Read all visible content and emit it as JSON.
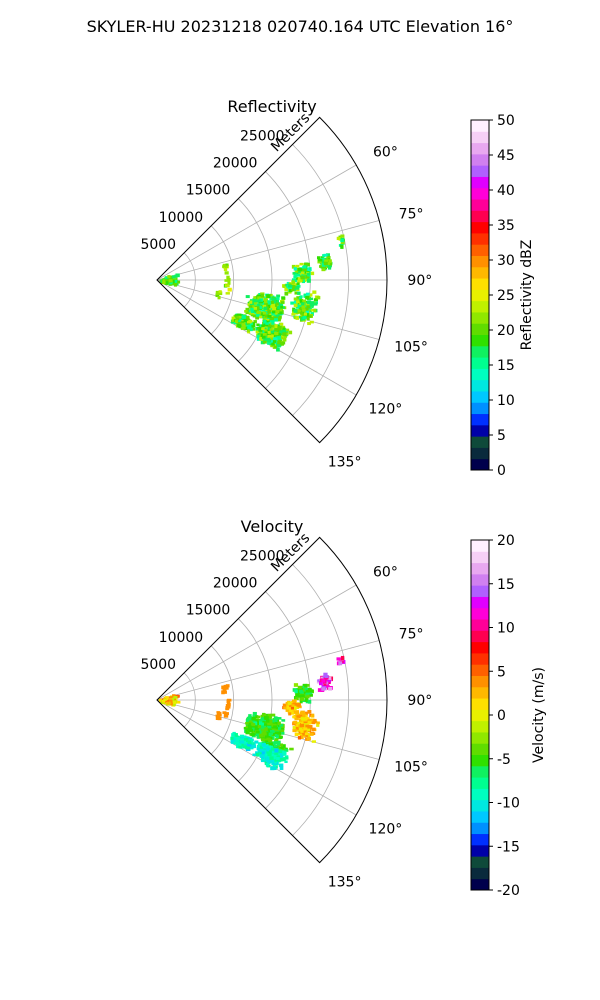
{
  "figure": {
    "suptitle": "SKYLER-HU  20231218  020740.164 UTC Elevation 16°"
  },
  "chart_data": [
    {
      "type": "sector-polar",
      "title": "Reflectivity",
      "range_label": "Meters",
      "range_ticks": [
        "5000",
        "10000",
        "15000",
        "20000",
        "25000"
      ],
      "range_tick_values": [
        5000,
        10000,
        15000,
        20000,
        25000
      ],
      "range_max": 30000,
      "azimuth_ticks": [
        "60°",
        "75°",
        "90°",
        "105°",
        "120°",
        "135°"
      ],
      "azimuth_tick_values": [
        60,
        75,
        90,
        105,
        120,
        135
      ],
      "azimuth_range": [
        45,
        135
      ],
      "grid": true,
      "colorbar": {
        "label": "Reflectivity dBZ",
        "ticks": [
          "0",
          "5",
          "10",
          "15",
          "20",
          "25",
          "30",
          "35",
          "40",
          "45",
          "50"
        ],
        "range": [
          0,
          50
        ],
        "colors": [
          "#00004c",
          "#0a2a3c",
          "#0f4a3a",
          "#0000a8",
          "#0030ff",
          "#0090ff",
          "#00c8ff",
          "#00e8e0",
          "#00ffc0",
          "#00ff90",
          "#10f060",
          "#30e000",
          "#60dd00",
          "#90e800",
          "#c0f000",
          "#e8f000",
          "#ffe000",
          "#ffb800",
          "#ff9000",
          "#ff6000",
          "#ff3000",
          "#ff0000",
          "#ff0050",
          "#ff0098",
          "#ff00d8",
          "#e000ff",
          "#b060ff",
          "#d080f0",
          "#e8a8f0",
          "#f6d0f6",
          "#fff0ff"
        ]
      },
      "echoes": [
        {
          "range_m": 1500,
          "az_deg": [
            68,
            112
          ],
          "value_dbz": 12
        },
        {
          "range_m": 8500,
          "az_deg": [
            70,
            108
          ],
          "value_dbz": 20
        },
        {
          "range_m": 17000,
          "az_deg": [
            76,
            92
          ],
          "value_dbz": 15
        },
        {
          "range_m": 15000,
          "az_deg": [
            95,
            122
          ],
          "value_dbz": 18
        },
        {
          "range_m": 20000,
          "az_deg": [
            92,
            112
          ],
          "value_dbz": 15
        }
      ]
    },
    {
      "type": "sector-polar",
      "title": "Velocity",
      "range_label": "Meters",
      "range_ticks": [
        "5000",
        "10000",
        "15000",
        "20000",
        "25000"
      ],
      "range_tick_values": [
        5000,
        10000,
        15000,
        20000,
        25000
      ],
      "range_max": 30000,
      "azimuth_ticks": [
        "60°",
        "75°",
        "90°",
        "105°",
        "120°",
        "135°"
      ],
      "azimuth_tick_values": [
        60,
        75,
        90,
        105,
        120,
        135
      ],
      "azimuth_range": [
        45,
        135
      ],
      "grid": true,
      "colorbar": {
        "label": "Velocity (m/s)",
        "ticks": [
          "-20",
          "-15",
          "-10",
          "-5",
          "0",
          "5",
          "10",
          "15",
          "20"
        ],
        "range": [
          -20,
          20
        ],
        "colors": [
          "#00004c",
          "#0a2a3c",
          "#0f4a3a",
          "#0000a8",
          "#0030ff",
          "#0090ff",
          "#00c8ff",
          "#00e8e0",
          "#00ffc0",
          "#00ff90",
          "#10f060",
          "#30e000",
          "#60dd00",
          "#90e800",
          "#c0f000",
          "#e8f000",
          "#ffe000",
          "#ffb800",
          "#ff9000",
          "#ff6000",
          "#ff3000",
          "#ff0000",
          "#ff0050",
          "#ff0098",
          "#ff00d8",
          "#e000ff",
          "#b060ff",
          "#d080f0",
          "#e8a8f0",
          "#f6d0f6",
          "#fff0ff"
        ]
      },
      "echoes": [
        {
          "range_m": 1500,
          "az_deg": [
            68,
            112
          ],
          "value_ms": 0
        },
        {
          "range_m": 8500,
          "az_deg": [
            70,
            108
          ],
          "value_ms": 2
        },
        {
          "range_m": 20000,
          "az_deg": [
            78,
            88
          ],
          "value_ms": 15
        },
        {
          "range_m": 17000,
          "az_deg": [
            92,
            100
          ],
          "value_ms": 2
        },
        {
          "range_m": 15000,
          "az_deg": [
            95,
            122
          ],
          "value_ms": -7
        }
      ]
    }
  ]
}
